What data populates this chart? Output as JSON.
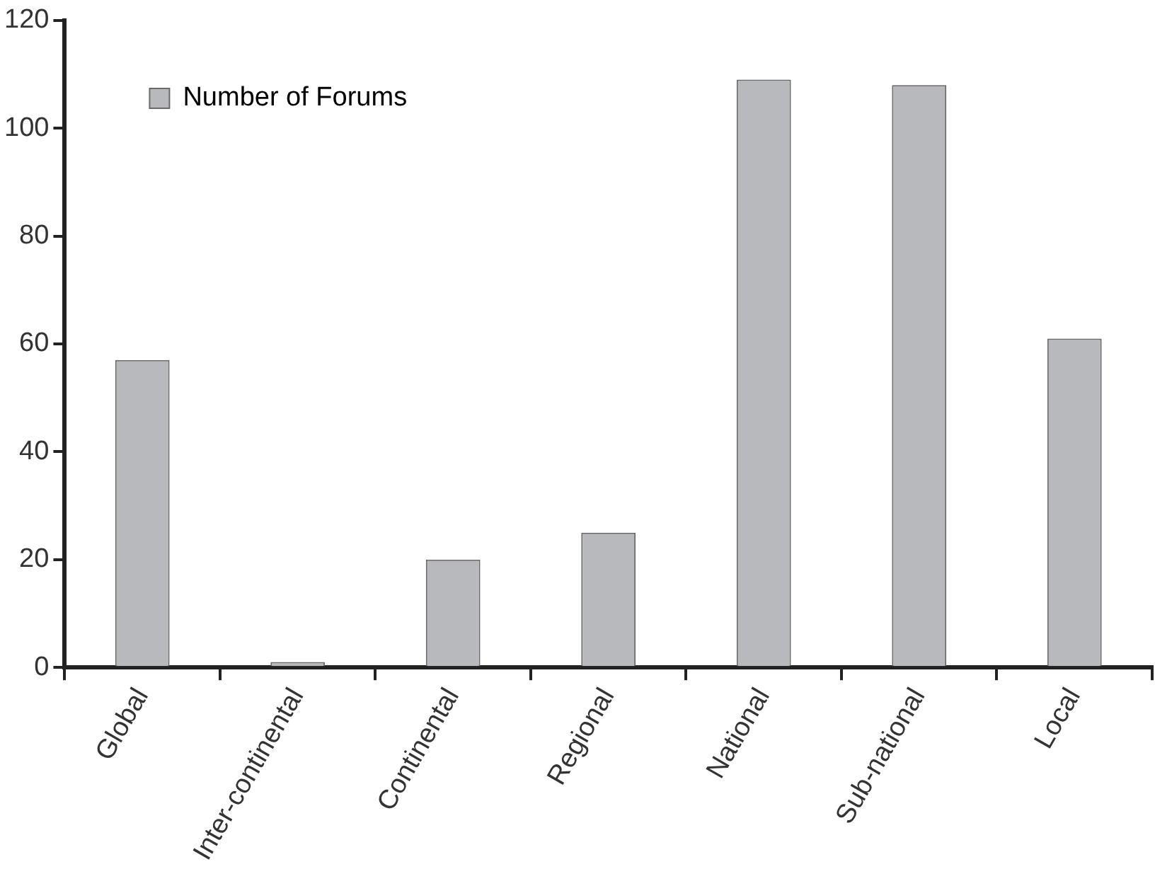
{
  "chart_data": {
    "type": "bar",
    "categories": [
      "Global",
      "Inter-continental",
      "Continental",
      "Regional",
      "National",
      "Sub-national",
      "Local"
    ],
    "series": [
      {
        "name": "Number of Forums",
        "color": "#b8b9bd",
        "values": [
          57,
          1,
          20,
          25,
          109,
          108,
          61
        ]
      }
    ],
    "ylim": [
      0,
      120
    ],
    "yticks": [
      0,
      20,
      40,
      60,
      80,
      100,
      120
    ],
    "grid": false,
    "legend": "top left"
  }
}
